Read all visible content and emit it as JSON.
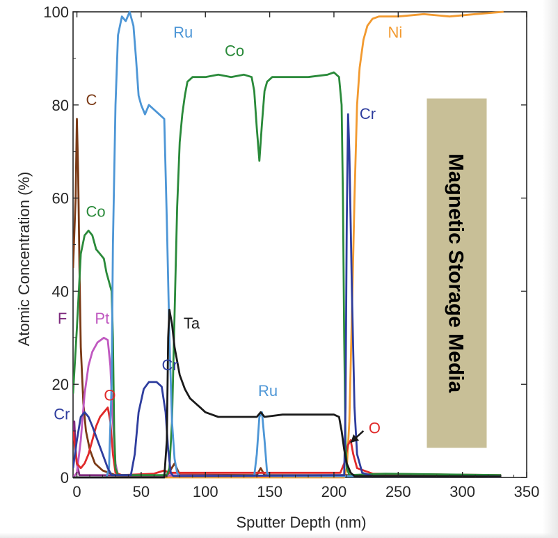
{
  "chart_data": {
    "type": "line",
    "title": "",
    "xlabel": "Sputter Depth (nm)",
    "ylabel": "Atomic Concentration (%)",
    "xlim": [
      -3,
      350
    ],
    "ylim": [
      0,
      100
    ],
    "xticks": [
      0,
      50,
      100,
      150,
      200,
      250,
      300,
      350
    ],
    "yticks": [
      0,
      20,
      40,
      60,
      80,
      100
    ],
    "grid": false,
    "side_box": {
      "text": "Magnetic Storage Media",
      "fill": "#c8bf97"
    },
    "series": [
      {
        "name": "C",
        "color": "#7b3a16",
        "points": [
          [
            -3,
            45
          ],
          [
            -1,
            60
          ],
          [
            0,
            77
          ],
          [
            1,
            65
          ],
          [
            2,
            45
          ],
          [
            3,
            28
          ],
          [
            5,
            16
          ],
          [
            7,
            10
          ],
          [
            10,
            6
          ],
          [
            14,
            3
          ],
          [
            20,
            1.5
          ],
          [
            30,
            0.5
          ],
          [
            70,
            0.3
          ],
          [
            76,
            3
          ],
          [
            80,
            0.6
          ],
          [
            140,
            0.5
          ],
          [
            143,
            2
          ],
          [
            146,
            0.5
          ],
          [
            210,
            0.5
          ],
          [
            330,
            0.2
          ]
        ]
      },
      {
        "name": "F",
        "color": "#7d2a7d",
        "points": [
          [
            -3,
            8
          ],
          [
            -2,
            12
          ],
          [
            -1,
            6
          ],
          [
            0,
            3
          ],
          [
            2,
            0.5
          ],
          [
            330,
            0.2
          ]
        ]
      },
      {
        "name": "Pt",
        "color": "#c058c0",
        "points": [
          [
            -3,
            0
          ],
          [
            0,
            1
          ],
          [
            3,
            8
          ],
          [
            6,
            18
          ],
          [
            9,
            24
          ],
          [
            12,
            27
          ],
          [
            16,
            29
          ],
          [
            21,
            30
          ],
          [
            24,
            29.5
          ],
          [
            26,
            24
          ],
          [
            28,
            12
          ],
          [
            30,
            3
          ],
          [
            32,
            0.5
          ],
          [
            330,
            0.2
          ]
        ]
      },
      {
        "name": "Co",
        "color": "#2a8a3a",
        "points": [
          [
            -3,
            18
          ],
          [
            0,
            32
          ],
          [
            3,
            48
          ],
          [
            6,
            52
          ],
          [
            9,
            53
          ],
          [
            12,
            52
          ],
          [
            15,
            49
          ],
          [
            18,
            48
          ],
          [
            21,
            47
          ],
          [
            23,
            44
          ],
          [
            25,
            42
          ],
          [
            27,
            40
          ],
          [
            28,
            30
          ],
          [
            29,
            10
          ],
          [
            30,
            2
          ],
          [
            32,
            0.5
          ],
          [
            70,
            0.5
          ],
          [
            72,
            2
          ],
          [
            74,
            12
          ],
          [
            76,
            35
          ],
          [
            78,
            58
          ],
          [
            80,
            72
          ],
          [
            82,
            78
          ],
          [
            84,
            82
          ],
          [
            86,
            85
          ],
          [
            90,
            86
          ],
          [
            100,
            86
          ],
          [
            110,
            86.5
          ],
          [
            120,
            86
          ],
          [
            130,
            86.5
          ],
          [
            136,
            86
          ],
          [
            138,
            83
          ],
          [
            140,
            75
          ],
          [
            142,
            68
          ],
          [
            144,
            76
          ],
          [
            146,
            83
          ],
          [
            148,
            85
          ],
          [
            152,
            86
          ],
          [
            165,
            86
          ],
          [
            180,
            86
          ],
          [
            195,
            86.5
          ],
          [
            200,
            87
          ],
          [
            204,
            86
          ],
          [
            206,
            80
          ],
          [
            207,
            60
          ],
          [
            208,
            30
          ],
          [
            209,
            8
          ],
          [
            210,
            2
          ],
          [
            212,
            0.5
          ],
          [
            240,
            0.8
          ],
          [
            330,
            0.5
          ]
        ]
      },
      {
        "name": "Ru",
        "color": "#4d96d6",
        "points": [
          [
            -3,
            0
          ],
          [
            23,
            0
          ],
          [
            25,
            2
          ],
          [
            27,
            20
          ],
          [
            28,
            50
          ],
          [
            30,
            80
          ],
          [
            32,
            95
          ],
          [
            35,
            99
          ],
          [
            38,
            98
          ],
          [
            41,
            100
          ],
          [
            44,
            97
          ],
          [
            46,
            90
          ],
          [
            48,
            82
          ],
          [
            50,
            80
          ],
          [
            53,
            78
          ],
          [
            56,
            80
          ],
          [
            60,
            79
          ],
          [
            64,
            78
          ],
          [
            68,
            77
          ],
          [
            70,
            55
          ],
          [
            72,
            30
          ],
          [
            74,
            12
          ],
          [
            76,
            4
          ],
          [
            78,
            1
          ],
          [
            80,
            0.3
          ],
          [
            138,
            0.3
          ],
          [
            140,
            5
          ],
          [
            142,
            13
          ],
          [
            144,
            14
          ],
          [
            146,
            8
          ],
          [
            148,
            1
          ],
          [
            150,
            0.3
          ],
          [
            330,
            0.2
          ]
        ]
      },
      {
        "name": "Cr",
        "color": "#2e3d9e",
        "points": [
          [
            -3,
            2
          ],
          [
            0,
            8
          ],
          [
            3,
            13
          ],
          [
            6,
            14
          ],
          [
            9,
            13
          ],
          [
            12,
            11
          ],
          [
            16,
            8
          ],
          [
            20,
            5
          ],
          [
            24,
            2
          ],
          [
            27,
            0.5
          ],
          [
            42,
            0.5
          ],
          [
            45,
            5
          ],
          [
            48,
            14
          ],
          [
            52,
            19
          ],
          [
            56,
            20.5
          ],
          [
            62,
            20.5
          ],
          [
            66,
            19.5
          ],
          [
            69,
            14
          ],
          [
            71,
            6
          ],
          [
            73,
            1
          ],
          [
            75,
            0.3
          ],
          [
            208,
            0.5
          ],
          [
            209,
            15
          ],
          [
            210,
            55
          ],
          [
            211,
            78
          ],
          [
            212,
            70
          ],
          [
            214,
            40
          ],
          [
            216,
            15
          ],
          [
            218,
            5
          ],
          [
            222,
            1
          ],
          [
            230,
            0.3
          ],
          [
            330,
            0.2
          ]
        ]
      },
      {
        "name": "O",
        "color": "#e02a2a",
        "points": [
          [
            -3,
            10
          ],
          [
            0,
            3
          ],
          [
            3,
            2
          ],
          [
            6,
            3
          ],
          [
            9,
            5
          ],
          [
            12,
            8
          ],
          [
            15,
            11
          ],
          [
            18,
            13
          ],
          [
            21,
            14
          ],
          [
            24,
            15
          ],
          [
            26,
            12
          ],
          [
            28,
            5
          ],
          [
            30,
            1
          ],
          [
            35,
            0.5
          ],
          [
            60,
            0.8
          ],
          [
            68,
            1.5
          ],
          [
            72,
            1
          ],
          [
            90,
            1
          ],
          [
            120,
            1
          ],
          [
            150,
            1
          ],
          [
            180,
            1
          ],
          [
            205,
            1
          ],
          [
            208,
            3
          ],
          [
            211,
            7
          ],
          [
            213,
            8
          ],
          [
            215,
            5
          ],
          [
            218,
            2
          ],
          [
            230,
            0.8
          ],
          [
            330,
            0.5
          ]
        ]
      },
      {
        "name": "Ta",
        "color": "#1a1a1a",
        "points": [
          [
            -3,
            0
          ],
          [
            68,
            0
          ],
          [
            70,
            8
          ],
          [
            71,
            30
          ],
          [
            72,
            36
          ],
          [
            74,
            33
          ],
          [
            76,
            28
          ],
          [
            78,
            25
          ],
          [
            80,
            22
          ],
          [
            84,
            19
          ],
          [
            88,
            17
          ],
          [
            92,
            16
          ],
          [
            96,
            15
          ],
          [
            100,
            14
          ],
          [
            110,
            13
          ],
          [
            125,
            13
          ],
          [
            140,
            13
          ],
          [
            143,
            14
          ],
          [
            146,
            13
          ],
          [
            160,
            13.5
          ],
          [
            180,
            13.5
          ],
          [
            200,
            13.5
          ],
          [
            204,
            13
          ],
          [
            206,
            10
          ],
          [
            208,
            6
          ],
          [
            210,
            3
          ],
          [
            213,
            1
          ],
          [
            216,
            0.3
          ],
          [
            330,
            0.2
          ]
        ]
      },
      {
        "name": "Ni",
        "color": "#f29a30",
        "points": [
          [
            -3,
            0
          ],
          [
            208,
            0
          ],
          [
            210,
            2
          ],
          [
            212,
            12
          ],
          [
            214,
            35
          ],
          [
            216,
            60
          ],
          [
            218,
            80
          ],
          [
            220,
            88
          ],
          [
            223,
            94
          ],
          [
            226,
            97
          ],
          [
            230,
            98.5
          ],
          [
            235,
            99
          ],
          [
            250,
            99
          ],
          [
            270,
            99.5
          ],
          [
            290,
            99
          ],
          [
            310,
            99.5
          ],
          [
            332,
            100
          ]
        ]
      }
    ],
    "annotations": [
      {
        "text": "C",
        "x": 7,
        "y": 80,
        "color": "#7b3a16"
      },
      {
        "text": "F",
        "x": -15,
        "y": 33,
        "color": "#7d2a7d"
      },
      {
        "text": "Pt",
        "x": 14,
        "y": 33,
        "color": "#c058c0"
      },
      {
        "text": "Co",
        "x": 7,
        "y": 56,
        "color": "#2a8a3a"
      },
      {
        "text": "Cr",
        "x": -18,
        "y": 12.5,
        "color": "#2e3d9e"
      },
      {
        "text": "O",
        "x": 21,
        "y": 16.5,
        "color": "#e02a2a"
      },
      {
        "text": "Ru",
        "x": 75,
        "y": 94.5,
        "color": "#4d96d6"
      },
      {
        "text": "Cr",
        "x": 66,
        "y": 23,
        "color": "#2e3d9e"
      },
      {
        "text": "Ta",
        "x": 83,
        "y": 32,
        "color": "#1a1a1a"
      },
      {
        "text": "Co",
        "x": 115,
        "y": 90.5,
        "color": "#2a8a3a"
      },
      {
        "text": "Ru",
        "x": 141,
        "y": 17.5,
        "color": "#4d96d6"
      },
      {
        "text": "Ni",
        "x": 242,
        "y": 94.5,
        "color": "#f29a30"
      },
      {
        "text": "Cr",
        "x": 220,
        "y": 77,
        "color": "#2e3d9e"
      },
      {
        "text": "O",
        "x": 227,
        "y": 9.5,
        "color": "#e02a2a"
      }
    ],
    "arrow": {
      "from": [
        223,
        10
      ],
      "to": [
        213,
        7.5
      ],
      "color": "#1a1a1a"
    }
  }
}
